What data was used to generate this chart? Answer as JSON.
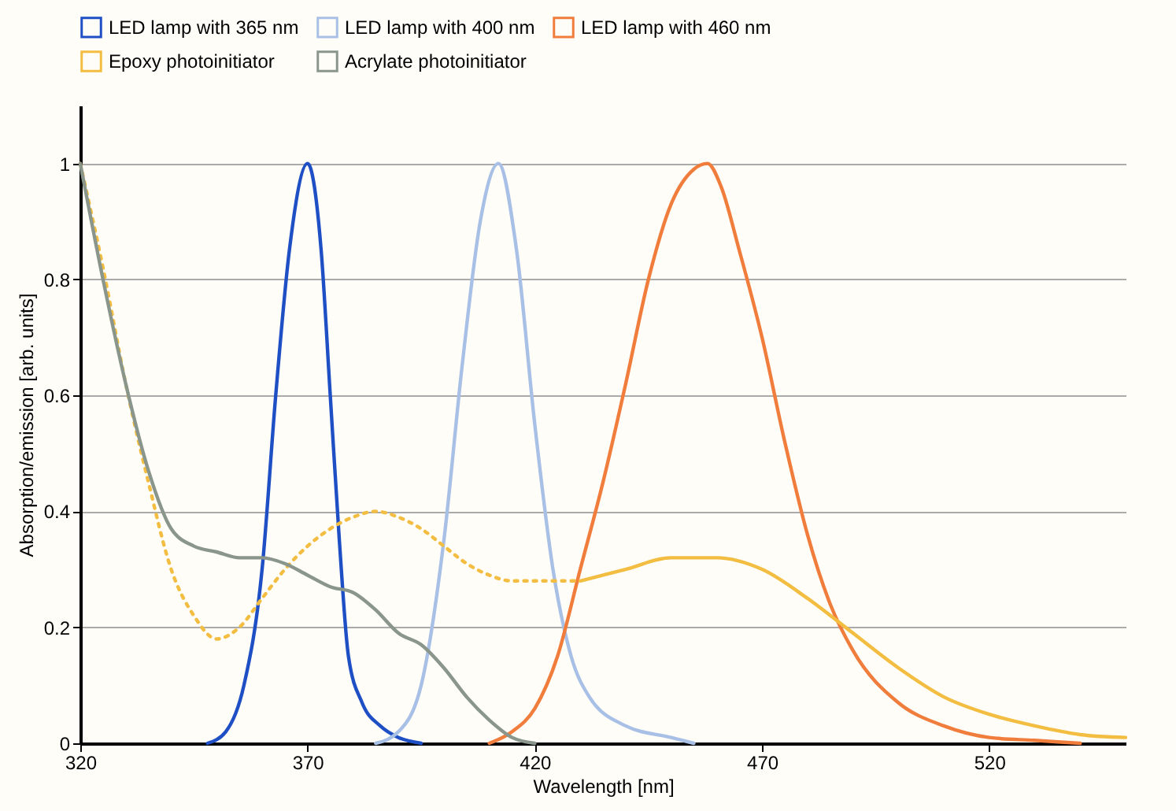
{
  "chart_data": {
    "type": "line",
    "xlabel": "Wavelength [nm]",
    "ylabel": "Absorption/emission [arb. units]",
    "xlim": [
      320,
      550
    ],
    "ylim": [
      0,
      1.1
    ],
    "xticks": [
      320,
      370,
      420,
      470,
      520
    ],
    "yticks": [
      0,
      0.2,
      0.4,
      0.6,
      0.8,
      1
    ],
    "grid": "y",
    "legend": "top",
    "series": [
      {
        "name": "LED lamp with 365 nm",
        "color": "#1f4fc4",
        "x": [
          348,
          352,
          356,
          360,
          363,
          366,
          370,
          373,
          375,
          377,
          379,
          382,
          386,
          390,
          395
        ],
        "values": [
          0,
          0.02,
          0.1,
          0.3,
          0.6,
          0.85,
          1.0,
          0.85,
          0.6,
          0.35,
          0.15,
          0.07,
          0.03,
          0.01,
          0
        ]
      },
      {
        "name": "LED lamp with 400 nm",
        "color": "#a9c0e6",
        "x": [
          385,
          390,
          395,
          400,
          404,
          408,
          412,
          416,
          420,
          424,
          428,
          432,
          440,
          450,
          455
        ],
        "values": [
          0,
          0.02,
          0.1,
          0.35,
          0.65,
          0.9,
          1.0,
          0.85,
          0.55,
          0.3,
          0.15,
          0.08,
          0.03,
          0.01,
          0
        ]
      },
      {
        "name": "LED lamp with 460 nm",
        "color": "#f07d3c",
        "x": [
          410,
          415,
          420,
          425,
          430,
          435,
          440,
          445,
          450,
          455,
          458,
          461,
          465,
          470,
          475,
          480,
          485,
          490,
          500,
          510,
          520,
          530,
          540
        ],
        "values": [
          0,
          0.02,
          0.06,
          0.15,
          0.3,
          0.45,
          0.62,
          0.8,
          0.93,
          0.99,
          1.0,
          0.96,
          0.85,
          0.7,
          0.52,
          0.36,
          0.24,
          0.16,
          0.07,
          0.03,
          0.01,
          0.005,
          0
        ]
      },
      {
        "name": "Epoxy photoinitiator",
        "color": "#f2bd40",
        "line_style": "dotted",
        "x": [
          320,
          325,
          330,
          335,
          340,
          345,
          350,
          355,
          360,
          365,
          370,
          375,
          380,
          385,
          390,
          395,
          400,
          405,
          410,
          415,
          420,
          430
        ],
        "values": [
          1.0,
          0.82,
          0.62,
          0.45,
          0.3,
          0.22,
          0.18,
          0.2,
          0.25,
          0.3,
          0.34,
          0.37,
          0.39,
          0.4,
          0.39,
          0.37,
          0.34,
          0.31,
          0.29,
          0.28,
          0.28,
          0.28
        ]
      },
      {
        "name": "Acrylate photoinitiator",
        "color": "#8a958c",
        "x": [
          320,
          325,
          330,
          335,
          340,
          345,
          350,
          355,
          360,
          365,
          370,
          375,
          380,
          385,
          390,
          395,
          400,
          405,
          410,
          415,
          420
        ],
        "values": [
          1.0,
          0.8,
          0.62,
          0.47,
          0.37,
          0.34,
          0.33,
          0.32,
          0.32,
          0.31,
          0.29,
          0.27,
          0.26,
          0.23,
          0.19,
          0.17,
          0.13,
          0.08,
          0.04,
          0.01,
          0
        ]
      },
      {
        "color": "#f2bd40",
        "line_style": "solid",
        "x": [
          430,
          440,
          450,
          460,
          470,
          480,
          490,
          500,
          510,
          520,
          530,
          540,
          550
        ],
        "values": [
          0.28,
          0.3,
          0.32,
          0.32,
          0.3,
          0.25,
          0.19,
          0.13,
          0.08,
          0.05,
          0.03,
          0.015,
          0.01
        ]
      }
    ]
  }
}
